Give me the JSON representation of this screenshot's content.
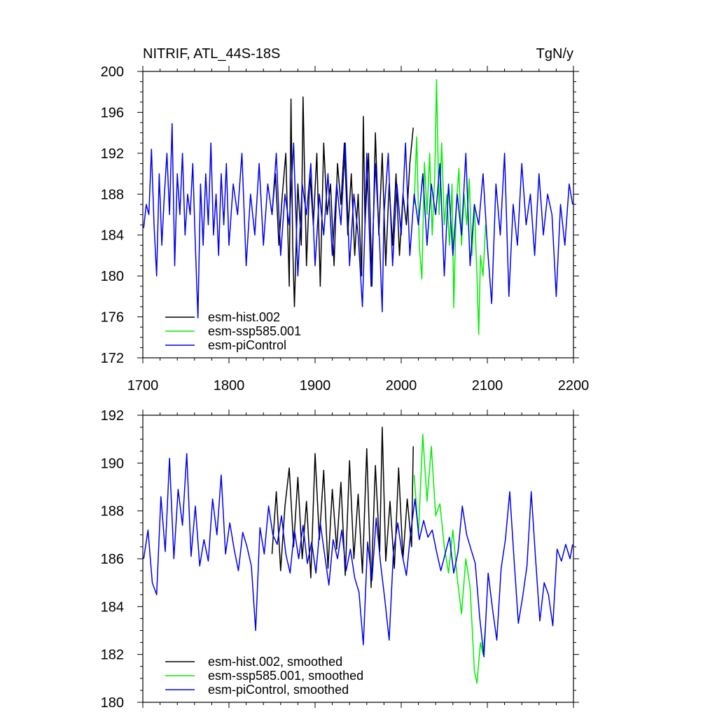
{
  "chart_data": [
    {
      "type": "line",
      "title": "NITRIF, ATL_44S-18S",
      "units": "TgN/y",
      "xlim": [
        1700,
        2200
      ],
      "ylim": [
        172,
        200
      ],
      "xticks": [
        1700,
        1800,
        1900,
        2000,
        2100,
        2200
      ],
      "xtick_labels": [
        "1700",
        "1800",
        "1900",
        "2000",
        "2100",
        "2200"
      ],
      "yticks": [
        172,
        176,
        180,
        184,
        188,
        192,
        196,
        200
      ],
      "ytick_labels": [
        "172",
        "176",
        "180",
        "184",
        "188",
        "192",
        "196",
        "200"
      ],
      "legend_position": "bottom-left",
      "series": [
        {
          "name": "esm-hist.002",
          "color": "#000000",
          "x": [
            1850,
            1854,
            1858,
            1862,
            1866,
            1870,
            1872,
            1874,
            1876,
            1880,
            1884,
            1886,
            1890,
            1894,
            1898,
            1902,
            1906,
            1910,
            1914,
            1918,
            1922,
            1926,
            1930,
            1934,
            1938,
            1942,
            1946,
            1950,
            1954,
            1956,
            1958,
            1962,
            1966,
            1970,
            1974,
            1978,
            1982,
            1986,
            1990,
            1994,
            1998,
            2002,
            2006,
            2010,
            2014
          ],
          "y": [
            186,
            190,
            183,
            188,
            192,
            179,
            197.3,
            183,
            177,
            189,
            183,
            197.5,
            181,
            190,
            185,
            192,
            179,
            193,
            186,
            189,
            181,
            191,
            187,
            193,
            184,
            190,
            182,
            188,
            180,
            195.6,
            185,
            192,
            179,
            194,
            184,
            192,
            181,
            189,
            183,
            190,
            182,
            188,
            185,
            191,
            194.5
          ]
        },
        {
          "name": "esm-ssp585.001",
          "color": "#00ee00",
          "x": [
            2015,
            2018,
            2021,
            2024,
            2027,
            2030,
            2033,
            2036,
            2039,
            2041,
            2044,
            2047,
            2050,
            2053,
            2056,
            2059,
            2061,
            2064,
            2067,
            2070,
            2073,
            2076,
            2079,
            2082,
            2085,
            2088,
            2090,
            2092,
            2095,
            2098
          ],
          "y": [
            187,
            193.6,
            183,
            179.7,
            191.1,
            186,
            192,
            184,
            190,
            199.2,
            186,
            193,
            185,
            188,
            183,
            189,
            176.9,
            187,
            190.5,
            183,
            188,
            185,
            189.5,
            182,
            187,
            180,
            174.3,
            182,
            180,
            185
          ]
        },
        {
          "name": "esm-piControl",
          "color": "#0000ee",
          "x": [
            1701,
            1704,
            1707,
            1710,
            1713,
            1716,
            1719,
            1722,
            1725,
            1728,
            1731,
            1734,
            1737,
            1740,
            1743,
            1746,
            1749,
            1752,
            1755,
            1758,
            1761,
            1764,
            1767,
            1770,
            1773,
            1776,
            1779,
            1782,
            1785,
            1788,
            1791,
            1794,
            1797,
            1800,
            1805,
            1810,
            1815,
            1820,
            1825,
            1830,
            1835,
            1840,
            1845,
            1850,
            1855,
            1860,
            1865,
            1870,
            1875,
            1880,
            1885,
            1890,
            1895,
            1900,
            1905,
            1910,
            1915,
            1920,
            1925,
            1930,
            1935,
            1940,
            1945,
            1950,
            1955,
            1958,
            1960,
            1965,
            1970,
            1975,
            1978,
            1980,
            1985,
            1990,
            1995,
            2000,
            2005,
            2010,
            2015,
            2020,
            2025,
            2030,
            2035,
            2040,
            2045,
            2050,
            2055,
            2060,
            2065,
            2070,
            2075,
            2080,
            2085,
            2090,
            2095,
            2100,
            2105,
            2110,
            2115,
            2120,
            2125,
            2130,
            2135,
            2140,
            2145,
            2150,
            2155,
            2160,
            2165,
            2170,
            2175,
            2180,
            2185,
            2190,
            2195,
            2199
          ],
          "y": [
            184.7,
            187,
            186,
            192.4,
            185,
            180,
            190,
            183,
            188,
            192,
            186,
            194.9,
            181,
            190,
            186,
            192,
            184,
            188,
            186,
            191,
            183,
            175.9,
            189,
            183,
            190,
            185,
            193,
            184,
            188,
            182,
            190,
            185,
            191,
            183,
            189,
            186,
            192,
            181,
            188,
            184,
            191,
            183,
            189,
            186,
            192,
            182,
            188,
            185,
            193,
            180,
            189,
            186,
            191,
            181,
            188,
            184,
            190,
            182,
            189,
            185,
            193,
            181,
            188,
            184,
            177,
            185,
            192,
            179,
            191,
            183,
            176.5,
            186,
            192,
            181,
            189,
            184,
            193,
            182,
            188,
            185,
            190,
            183,
            189,
            186,
            191,
            180,
            189,
            182,
            188,
            184,
            192,
            181,
            187,
            185,
            190,
            183,
            177.3,
            189,
            184,
            192,
            178,
            187,
            183,
            191,
            185,
            188,
            182,
            190,
            184,
            188,
            186,
            178,
            187,
            183,
            189,
            187
          ]
        }
      ]
    },
    {
      "type": "line",
      "title": "",
      "xlim": [
        1700,
        2200
      ],
      "ylim": [
        180,
        192
      ],
      "yticks": [
        180,
        182,
        184,
        186,
        188,
        190,
        192
      ],
      "ytick_labels": [
        "180",
        "182",
        "184",
        "186",
        "188",
        "190",
        "192"
      ],
      "legend_position": "bottom-left",
      "series": [
        {
          "name": "esm-hist.002, smoothed",
          "color": "#000000",
          "x": [
            1850,
            1855,
            1860,
            1865,
            1870,
            1875,
            1880,
            1885,
            1890,
            1895,
            1900,
            1905,
            1910,
            1915,
            1920,
            1925,
            1930,
            1935,
            1940,
            1945,
            1950,
            1955,
            1960,
            1965,
            1970,
            1975,
            1978,
            1982,
            1987,
            1992,
            1997,
            2002,
            2007,
            2012,
            2014
          ],
          "y": [
            186.2,
            188.8,
            185.5,
            188.2,
            189.8,
            186.5,
            189.4,
            186.0,
            188.4,
            185.2,
            190.4,
            186.8,
            189.7,
            185.6,
            188.9,
            186.4,
            189.2,
            185.3,
            190.1,
            186.0,
            188.7,
            185.4,
            190.6,
            184.8,
            189.9,
            186.3,
            191.5,
            185.9,
            188.4,
            185.6,
            189.8,
            186.0,
            188.5,
            186.5,
            190.7
          ]
        },
        {
          "name": "esm-ssp585.001, smoothed",
          "color": "#00ee00",
          "x": [
            2015,
            2020,
            2025,
            2030,
            2035,
            2040,
            2045,
            2050,
            2055,
            2060,
            2065,
            2070,
            2075,
            2080,
            2085,
            2088,
            2092,
            2095,
            2098
          ],
          "y": [
            189.5,
            187.0,
            191.2,
            188.4,
            190.7,
            187.8,
            188.3,
            186.5,
            185.4,
            187.2,
            185.2,
            183.7,
            186.0,
            184.8,
            181.3,
            180.8,
            182.5,
            182.0,
            183.2
          ]
        },
        {
          "name": "esm-piControl, smoothed",
          "color": "#0000ee",
          "x": [
            1701,
            1706,
            1711,
            1716,
            1721,
            1726,
            1731,
            1736,
            1741,
            1746,
            1751,
            1756,
            1761,
            1766,
            1771,
            1776,
            1781,
            1786,
            1791,
            1796,
            1801,
            1806,
            1811,
            1816,
            1821,
            1826,
            1831,
            1836,
            1841,
            1846,
            1851,
            1856,
            1861,
            1866,
            1871,
            1876,
            1881,
            1886,
            1891,
            1896,
            1901,
            1906,
            1911,
            1916,
            1921,
            1926,
            1931,
            1936,
            1941,
            1946,
            1951,
            1956,
            1961,
            1966,
            1971,
            1976,
            1981,
            1986,
            1991,
            1996,
            2001,
            2006,
            2011,
            2016,
            2021,
            2026,
            2031,
            2036,
            2041,
            2046,
            2051,
            2056,
            2061,
            2066,
            2071,
            2076,
            2081,
            2086,
            2091,
            2096,
            2101,
            2106,
            2111,
            2116,
            2121,
            2126,
            2131,
            2136,
            2141,
            2146,
            2151,
            2156,
            2161,
            2166,
            2171,
            2176,
            2181,
            2186,
            2191,
            2196,
            2199
          ],
          "y": [
            186.0,
            187.2,
            185.0,
            184.5,
            188.6,
            186.3,
            190.2,
            186.0,
            188.9,
            187.4,
            190.4,
            186.1,
            188.2,
            185.7,
            186.8,
            185.9,
            188.5,
            187.0,
            189.5,
            186.2,
            187.5,
            186.4,
            185.5,
            187.1,
            186.5,
            185.7,
            183.0,
            187.3,
            186.2,
            188.2,
            187.0,
            186.6,
            187.8,
            186.2,
            185.4,
            187.2,
            186.0,
            187.4,
            185.8,
            186.7,
            185.4,
            187.5,
            186.2,
            184.9,
            186.8,
            186.0,
            187.2,
            185.5,
            186.4,
            185.2,
            184.6,
            182.4,
            186.7,
            185.1,
            187.7,
            185.8,
            184.3,
            182.6,
            186.3,
            187.5,
            186.2,
            185.3,
            187.1,
            188.5,
            186.8,
            187.6,
            186.9,
            187.2,
            186.3,
            185.5,
            186.2,
            186.9,
            185.4,
            186.3,
            188.2,
            187.0,
            186.4,
            185.8,
            183.6,
            181.9,
            185.4,
            183.9,
            182.6,
            185.6,
            186.8,
            188.8,
            186.0,
            183.3,
            184.4,
            185.7,
            188.8,
            186.0,
            183.4,
            185.0,
            184.5,
            183.2,
            186.4,
            185.9,
            186.6,
            186.0,
            186.6
          ]
        }
      ]
    }
  ]
}
